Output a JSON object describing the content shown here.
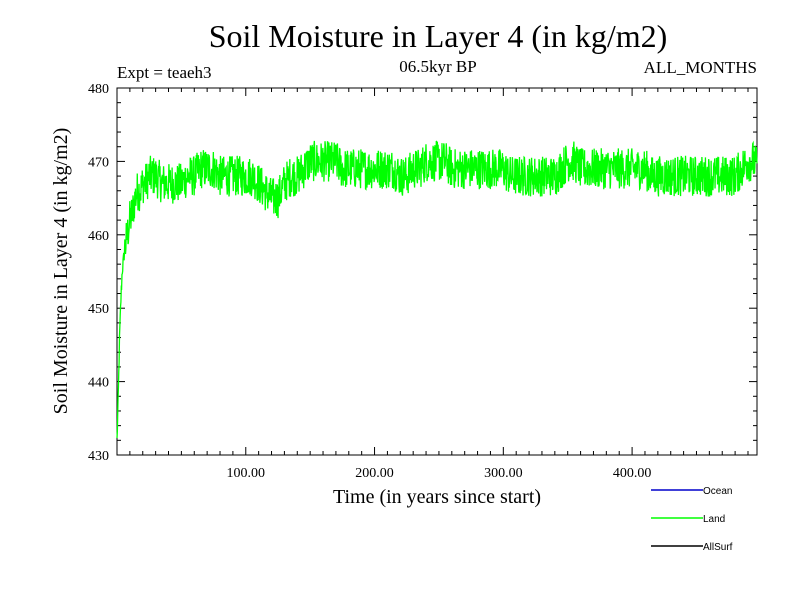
{
  "chart_data": {
    "type": "line",
    "title": "Soil Moisture in Layer 4 (in kg/m2)",
    "subtitle_left": "Expt = teaeh3",
    "subtitle_center": "06.5kyr BP",
    "subtitle_right": "ALL_MONTHS",
    "xlabel": "Time (in years since start)",
    "ylabel": "Soil Moisture in Layer 4 (in kg/m2)",
    "xlim": [
      0,
      497
    ],
    "ylim": [
      430,
      480
    ],
    "x_ticks": [
      100,
      200,
      300,
      400
    ],
    "x_tick_labels": [
      "100.00",
      "200.00",
      "300.00",
      "400.00"
    ],
    "y_ticks": [
      430,
      440,
      450,
      460,
      470,
      480
    ],
    "y_tick_labels": [
      "430",
      "440",
      "450",
      "460",
      "470",
      "480"
    ],
    "legend": [
      {
        "name": "Ocean",
        "color": "#0000cc"
      },
      {
        "name": "Land",
        "color": "#00ff00"
      },
      {
        "name": "AllSurf",
        "color": "#000000"
      }
    ],
    "series": [
      {
        "name": "Land",
        "color": "#00ff00",
        "x": [
          0,
          1,
          2,
          3,
          4,
          6,
          8,
          10,
          12,
          14,
          16,
          18,
          20,
          22,
          25,
          28,
          30,
          35,
          40,
          45,
          50,
          55,
          60,
          65,
          70,
          75,
          80,
          85,
          90,
          95,
          100,
          105,
          110,
          115,
          120,
          125,
          130,
          135,
          140,
          145,
          150,
          155,
          160,
          165,
          170,
          175,
          180,
          185,
          190,
          195,
          200,
          205,
          210,
          215,
          220,
          225,
          230,
          235,
          240,
          245,
          250,
          255,
          260,
          265,
          270,
          275,
          280,
          285,
          290,
          295,
          300,
          305,
          310,
          315,
          320,
          325,
          330,
          335,
          340,
          345,
          350,
          355,
          360,
          365,
          370,
          375,
          380,
          385,
          390,
          395,
          400,
          405,
          410,
          415,
          420,
          425,
          430,
          435,
          440,
          445,
          450,
          455,
          460,
          465,
          470,
          475,
          480,
          485,
          490,
          495,
          497
        ],
        "values": [
          432,
          438,
          446,
          451,
          455,
          458,
          460,
          462,
          463,
          465,
          466,
          466,
          467,
          467,
          468,
          468,
          468,
          467,
          467,
          467,
          467,
          468,
          468,
          469,
          469,
          469,
          468,
          468,
          468,
          468,
          468,
          468,
          467,
          466,
          465,
          465,
          467,
          468,
          468,
          469,
          470,
          470,
          470,
          470,
          470,
          469,
          469,
          469,
          469,
          469,
          469,
          469,
          469,
          469,
          468,
          468,
          469,
          469,
          470,
          470,
          470,
          470,
          469,
          469,
          469,
          469,
          469,
          469,
          469,
          469,
          469,
          468,
          468,
          468,
          468,
          468,
          468,
          468,
          468,
          469,
          470,
          470,
          469,
          469,
          469,
          469,
          469,
          469,
          469,
          469,
          469,
          469,
          469,
          468,
          468,
          468,
          468,
          468,
          468,
          468,
          468,
          468,
          468,
          468,
          468,
          468,
          468,
          469,
          470,
          470,
          469
        ],
        "noise_amplitude": 2.8
      }
    ]
  }
}
